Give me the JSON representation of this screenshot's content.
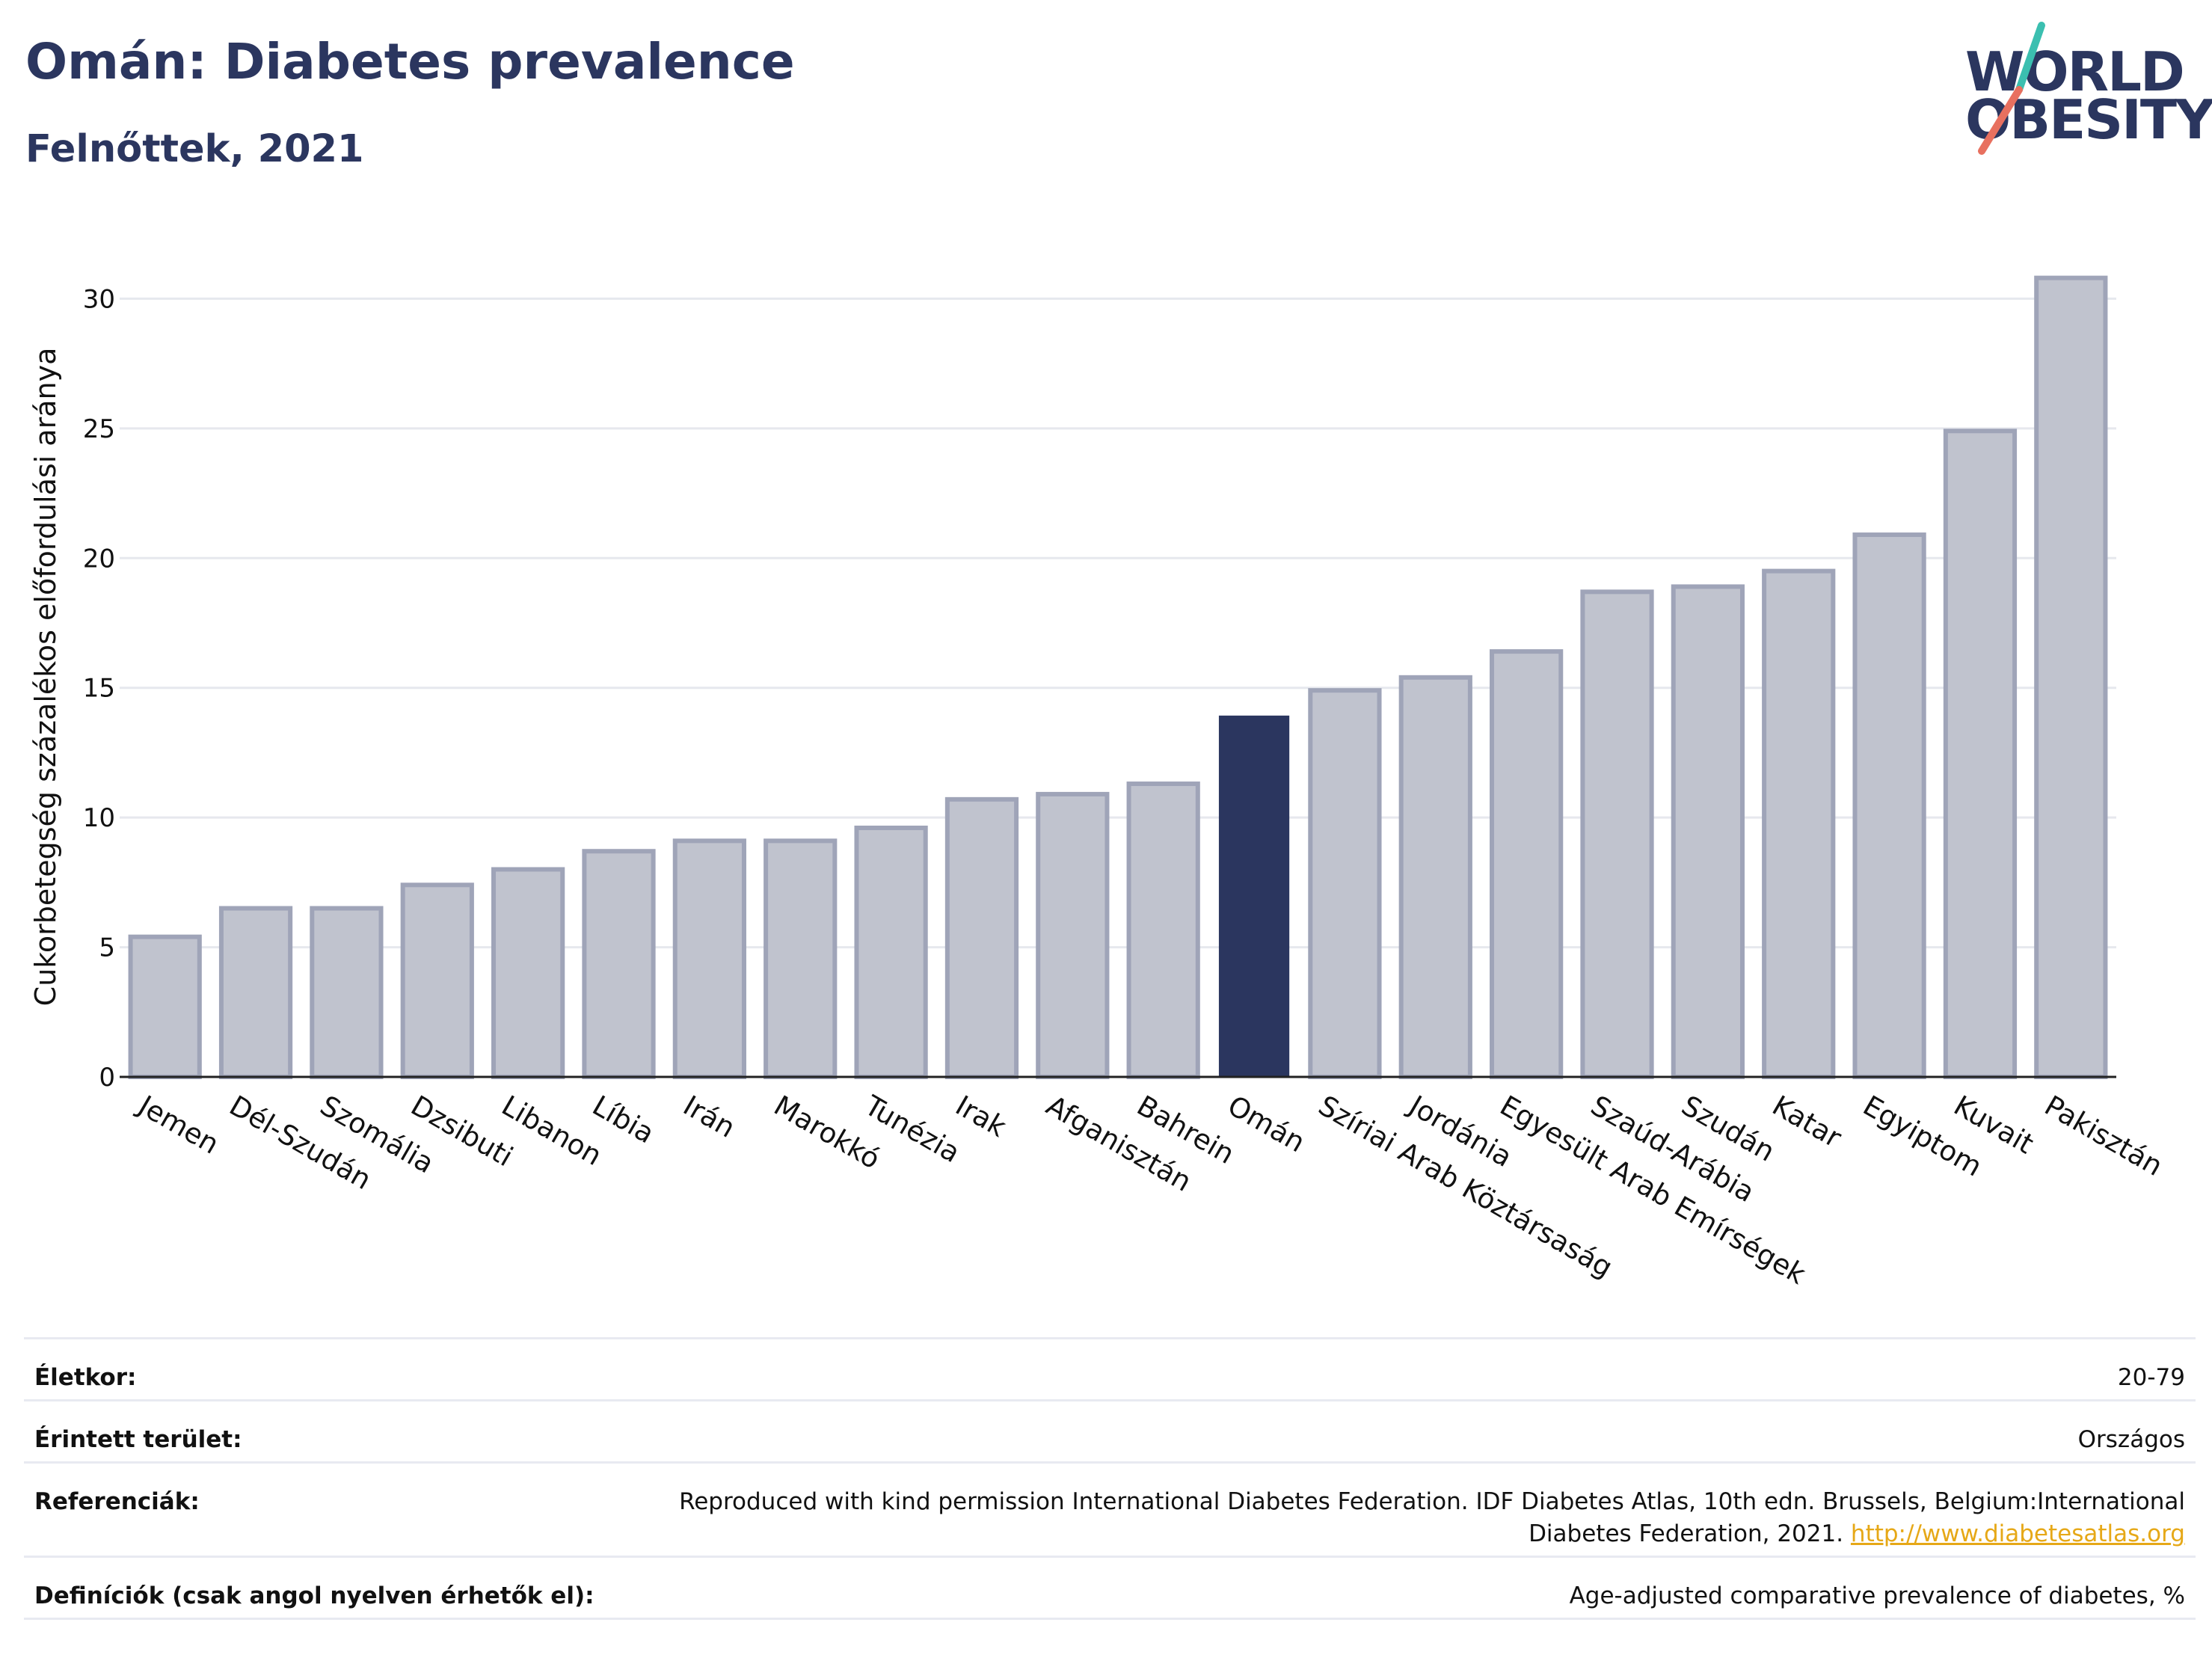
{
  "header": {
    "title": "Omán: Diabetes prevalence",
    "subtitle": "Felnőttek, 2021"
  },
  "logo": {
    "line1": "WORLD",
    "line2": "OBESITY",
    "colors": {
      "text": "#2b365f",
      "teal": "#3bbfb0",
      "coral": "#e8705f"
    }
  },
  "colors": {
    "bar_fill": "#c0c3ce",
    "bar_stroke": "#9fa4b8",
    "highlight": "#2b365f",
    "grid": "#e6e8ee",
    "axis": "#222222"
  },
  "chart_data": {
    "type": "bar",
    "title": "Omán: Diabetes prevalence",
    "subtitle": "Felnőttek, 2021",
    "ylabel": "Cukorbetegség százalékos előfordulási aránya",
    "xlabel": "",
    "ylim": [
      0,
      32
    ],
    "yticks": [
      0,
      5,
      10,
      15,
      20,
      25,
      30
    ],
    "grid": true,
    "highlight": "Omán",
    "categories": [
      "Jemen",
      "Dél-Szudán",
      "Szomália",
      "Dzsibuti",
      "Libanon",
      "Líbia",
      "Irán",
      "Marokkó",
      "Tunézia",
      "Irak",
      "Afganisztán",
      "Bahrein",
      "Omán",
      "Szíriai Arab Köztársaság",
      "Jordánia",
      "Egyesült Arab Emírségek",
      "Szaúd-Arábia",
      "Szudán",
      "Katar",
      "Egyiptom",
      "Kuvait",
      "Pakisztán"
    ],
    "values": [
      5.4,
      6.5,
      6.5,
      7.4,
      8.0,
      8.7,
      9.1,
      9.1,
      9.6,
      10.7,
      10.9,
      11.3,
      13.9,
      14.9,
      15.4,
      16.4,
      18.7,
      18.9,
      19.5,
      20.9,
      24.9,
      30.8
    ]
  },
  "meta": {
    "rows": [
      {
        "key": "Életkor:",
        "value": "20-79"
      },
      {
        "key": "Érintett terület:",
        "value": "Országos"
      },
      {
        "key": "Referenciák:",
        "value": "Reproduced with kind permission International Diabetes Federation.  IDF Diabetes Atlas, 10th edn. Brussels, Belgium:International Diabetes Federation, 2021. ",
        "link": "http://www.diabetesatlas.org"
      },
      {
        "key": "Definíciók (csak angol nyelven érhetők el):",
        "value": "Age-adjusted comparative prevalence of diabetes, %"
      }
    ]
  }
}
